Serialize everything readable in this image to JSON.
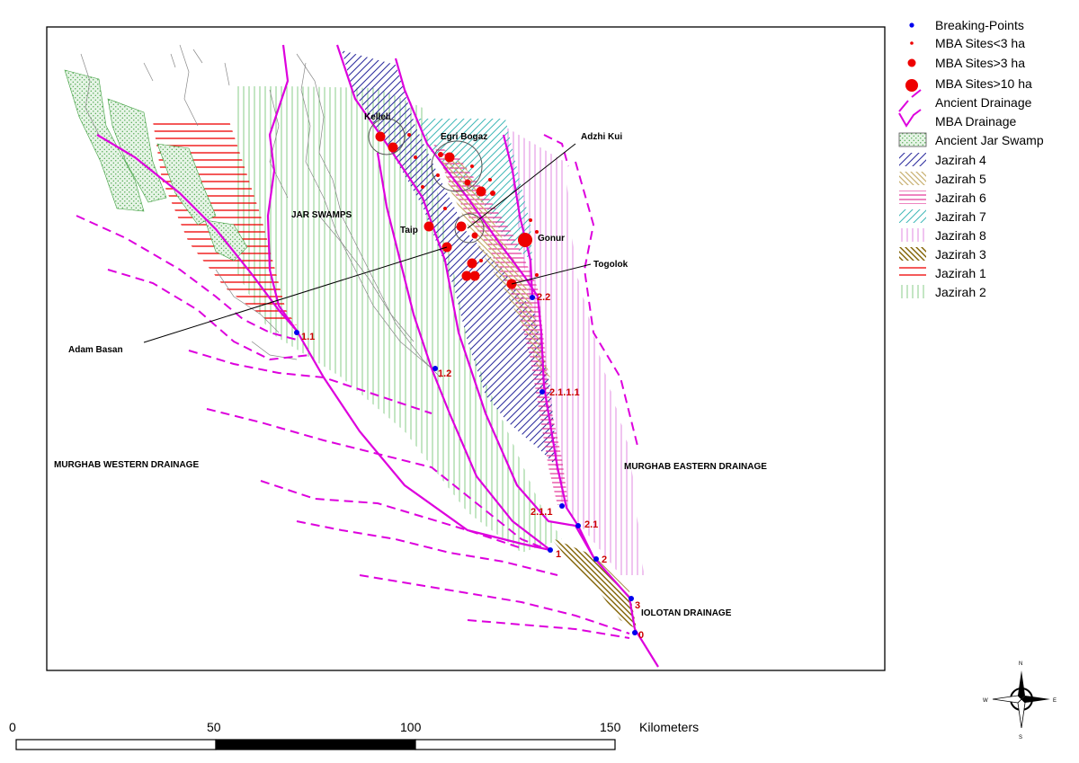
{
  "legend": {
    "items": [
      {
        "key": "breaking-points",
        "label": "Breaking-Points"
      },
      {
        "key": "mba-small",
        "label": "MBA Sites<3 ha"
      },
      {
        "key": "mba-medium",
        "label": "MBA Sites>3 ha"
      },
      {
        "key": "mba-large",
        "label": "MBA Sites>10 ha"
      },
      {
        "key": "ancient-drainage",
        "label": "Ancient  Drainage"
      },
      {
        "key": "mba-drainage",
        "label": "MBA Drainage"
      },
      {
        "key": "ancient-jar-swamp",
        "label": "Ancient Jar Swamp"
      },
      {
        "key": "jazirah-4",
        "label": "Jazirah 4"
      },
      {
        "key": "jazirah-5",
        "label": "Jazirah 5"
      },
      {
        "key": "jazirah-6",
        "label": "Jazirah 6"
      },
      {
        "key": "jazirah-7",
        "label": "Jazirah 7"
      },
      {
        "key": "jazirah-8",
        "label": "Jazirah 8"
      },
      {
        "key": "jazirah-3",
        "label": "Jazirah 3"
      },
      {
        "key": "jazirah-1",
        "label": "Jazirah 1"
      },
      {
        "key": "jazirah-2",
        "label": "Jazirah 2"
      }
    ]
  },
  "map": {
    "region_labels": {
      "jar_swamps": "JAR SWAMPS",
      "western": "MURGHAB WESTERN DRAINAGE",
      "eastern": "MURGHAB EASTERN DRAINAGE",
      "iolotan": "IOLOTAN DRAINAGE"
    },
    "site_labels": {
      "kelleli": "Kelleli",
      "egri_bogaz": "Egri Bogaz",
      "adzhi_kui": "Adzhi Kui",
      "taip": "Taip",
      "gonur": "Gonur",
      "togolok": "Togolok",
      "adam_basan": "Adam Basan"
    },
    "breaking_points": {
      "p1_1": "1.1",
      "p1_2": "1.2",
      "p2_2": "2.2",
      "p2_1_1_1": "2.1.1.1",
      "p2_1_1": "2.1.1",
      "p2_1": "2.1",
      "p1": "1",
      "p2": "2",
      "p3": "3",
      "p0": "0"
    }
  },
  "scale_bar": {
    "ticks": [
      "0",
      "50",
      "100",
      "150"
    ],
    "unit": "Kilometers"
  },
  "compass": {
    "n": "N",
    "s": "S",
    "e": "E",
    "w": "W"
  },
  "colors": {
    "drainage": "#dd00dd",
    "site": "#ee0000",
    "breaking_point": "#0000ee",
    "jazirah_4": "#3030a0",
    "jazirah_5": "#c8b070",
    "jazirah_6": "#e0208c",
    "jazirah_7": "#40b8b8",
    "jazirah_8": "#e088e0",
    "jazirah_3": "#806000",
    "jazirah_1": "#ee0000",
    "jazirah_2": "#88cc88",
    "swamp": "#40a040"
  }
}
